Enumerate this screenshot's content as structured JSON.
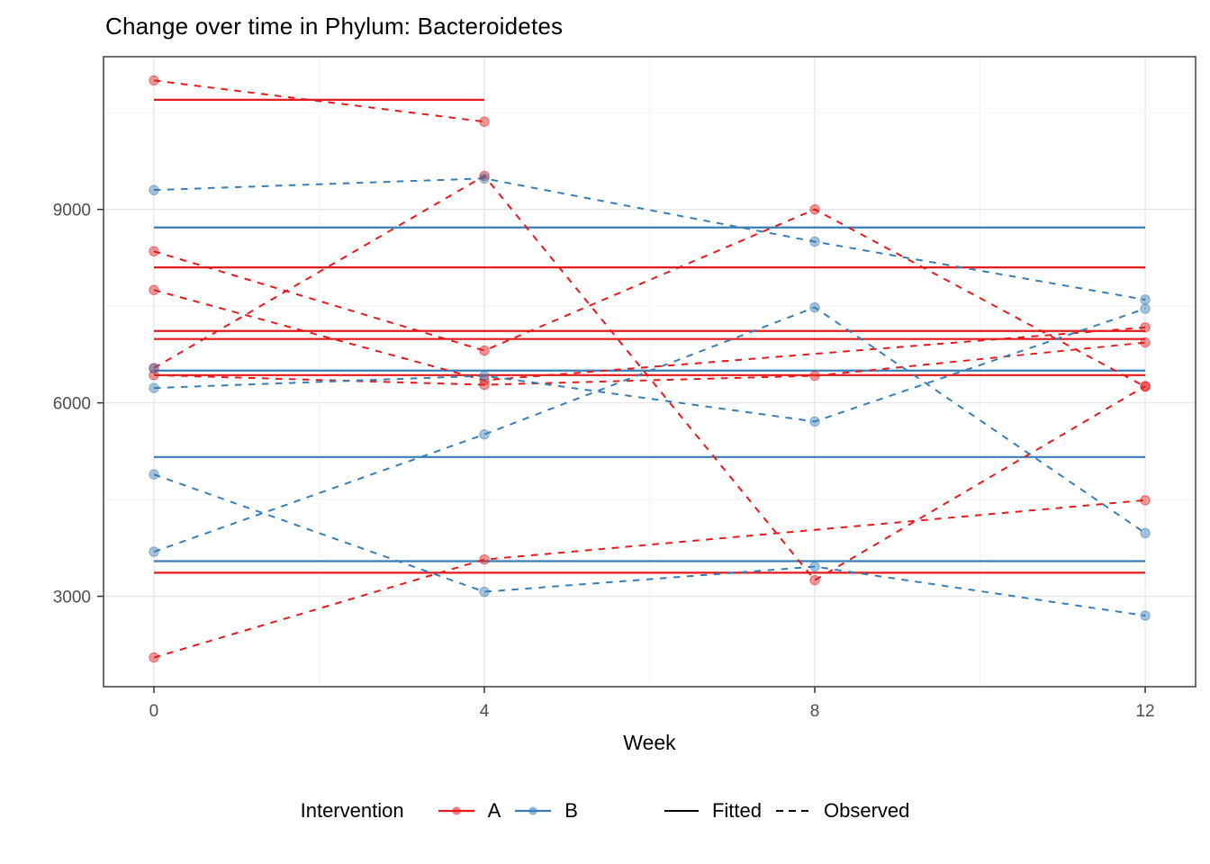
{
  "title": "Change over time in Phylum: Bacteroidetes",
  "colors": {
    "A": "#E41A1C",
    "B": "#377EB8",
    "key_line": "#000000",
    "grid_major": "#e7e7e7",
    "grid_minor": "#f3f3f3",
    "panel_border": "#333333",
    "tick_label": "#4d4d4d",
    "tick_mark": "#333333"
  },
  "axes": {
    "x": {
      "label": "Week",
      "ticks": [
        0,
        4,
        8,
        12
      ],
      "minor": [
        2,
        6,
        10
      ],
      "range": [
        -0.61,
        12.61
      ]
    },
    "y": {
      "ticks": [
        3000,
        6000,
        9000
      ],
      "minor": [
        4500,
        7500,
        10500
      ],
      "range": [
        1598,
        11368
      ]
    }
  },
  "legend": {
    "intervention_label": "Intervention",
    "groups": [
      {
        "label": "A",
        "color": "#E41A1C"
      },
      {
        "label": "B",
        "color": "#377EB8"
      }
    ],
    "linetypes": [
      {
        "label": "Fitted",
        "style": "solid"
      },
      {
        "label": "Observed",
        "style": "dashed"
      }
    ]
  },
  "chart_data": {
    "type": "line",
    "title": "Change over time in Phylum: Bacteroidetes",
    "xlabel": "Week",
    "ylabel": "",
    "x_ticks": [
      0,
      4,
      8,
      12
    ],
    "y_ticks": [
      3000,
      6000,
      9000
    ],
    "grid": true,
    "legend_position": "bottom",
    "series": [
      {
        "group": "A",
        "fitted": 10700,
        "fitted_weeks": [
          0,
          4
        ],
        "observed": [
          [
            0,
            11000
          ],
          [
            4,
            10360
          ]
        ]
      },
      {
        "group": "A",
        "fitted": 8100,
        "fitted_weeks": [
          0,
          12
        ],
        "observed": [
          [
            0,
            8350
          ],
          [
            4,
            6810
          ],
          [
            8,
            9000
          ],
          [
            12,
            6250
          ]
        ]
      },
      {
        "group": "A",
        "fitted": 7115,
        "fitted_weeks": [
          0,
          12
        ],
        "observed": [
          [
            0,
            7750
          ],
          [
            4,
            6350
          ],
          [
            12,
            7170
          ]
        ]
      },
      {
        "group": "A",
        "fitted": 6990,
        "fitted_weeks": [
          0,
          12
        ],
        "observed": [
          [
            0,
            6540
          ],
          [
            4,
            9520
          ],
          [
            8,
            3250
          ],
          [
            12,
            6260
          ]
        ]
      },
      {
        "group": "A",
        "fitted": 6430,
        "fitted_weeks": [
          0,
          12
        ],
        "observed": [
          [
            0,
            6430
          ],
          [
            4,
            6280
          ],
          [
            8,
            6420
          ],
          [
            12,
            6935
          ]
        ]
      },
      {
        "group": "A",
        "fitted": 3365,
        "fitted_weeks": [
          0,
          12
        ],
        "observed": [
          [
            0,
            2050
          ],
          [
            4,
            3570
          ],
          [
            12,
            4490
          ]
        ]
      },
      {
        "group": "B",
        "fitted": 8720,
        "fitted_weeks": [
          0,
          12
        ],
        "observed": [
          [
            0,
            9300
          ],
          [
            4,
            9480
          ],
          [
            8,
            8500
          ],
          [
            12,
            7600
          ]
        ]
      },
      {
        "group": "B",
        "fitted": 6500,
        "fitted_weeks": [
          0,
          12
        ],
        "observed": [
          [
            0,
            6230
          ],
          [
            4,
            6420
          ],
          [
            8,
            5710
          ],
          [
            12,
            7460
          ]
        ]
      },
      {
        "group": "B",
        "fitted": 5160,
        "fitted_weeks": [
          0,
          12
        ],
        "observed": [
          [
            0,
            3690
          ],
          [
            4,
            5510
          ],
          [
            8,
            7480
          ],
          [
            12,
            3980
          ]
        ]
      },
      {
        "group": "B",
        "fitted": 3545,
        "fitted_weeks": [
          0,
          12
        ],
        "observed": [
          [
            0,
            4890
          ],
          [
            4,
            3070
          ],
          [
            8,
            3460
          ],
          [
            12,
            2700
          ]
        ]
      },
      {
        "group": "B",
        "fitted": null,
        "fitted_weeks": null,
        "observed": [
          [
            0,
            6530
          ]
        ]
      }
    ]
  }
}
